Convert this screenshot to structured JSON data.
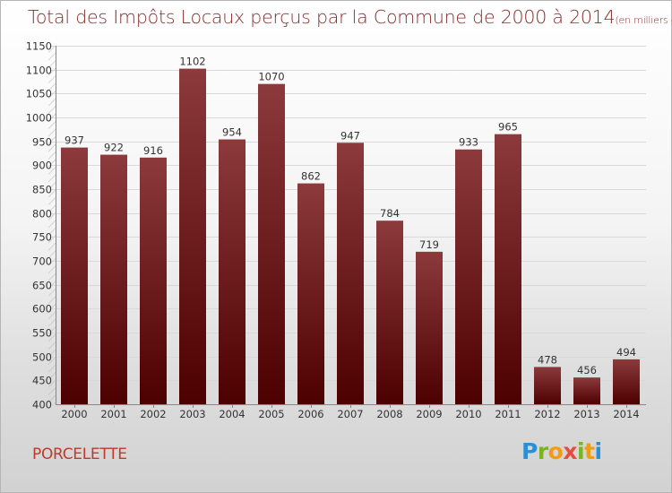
{
  "title": "Total des Impôts Locaux perçus par la Commune de 2000 à 2014",
  "subtitle": "(en milliers d'€)",
  "commune": "PORCELETTE",
  "logo": {
    "letters": [
      "P",
      "r",
      "o",
      "x",
      "i",
      "t",
      "i"
    ],
    "colors": [
      "#2b8fd6",
      "#7ab51d",
      "#f39c12",
      "#e74c3c",
      "#7ab51d",
      "#f39c12",
      "#2b8fd6"
    ]
  },
  "colors": {
    "bar_dark": "#4d0000",
    "bar_light": "#8c3a3c",
    "title": "#8a2a2a",
    "commune": "#c0392b"
  },
  "chart_data": {
    "type": "bar",
    "categories": [
      "2000",
      "2001",
      "2002",
      "2003",
      "2004",
      "2005",
      "2006",
      "2007",
      "2008",
      "2009",
      "2010",
      "2011",
      "2012",
      "2013",
      "2014"
    ],
    "values": [
      937,
      922,
      916,
      1102,
      954,
      1070,
      862,
      947,
      784,
      719,
      933,
      965,
      478,
      456,
      494
    ],
    "ylim": [
      400,
      1150
    ],
    "yticks": [
      400,
      450,
      500,
      550,
      600,
      650,
      700,
      750,
      800,
      850,
      900,
      950,
      1000,
      1050,
      1100,
      1150
    ],
    "grid": true,
    "title": "Total des Impôts Locaux perçus par la Commune de 2000 à 2014",
    "xlabel": "",
    "ylabel": ""
  }
}
